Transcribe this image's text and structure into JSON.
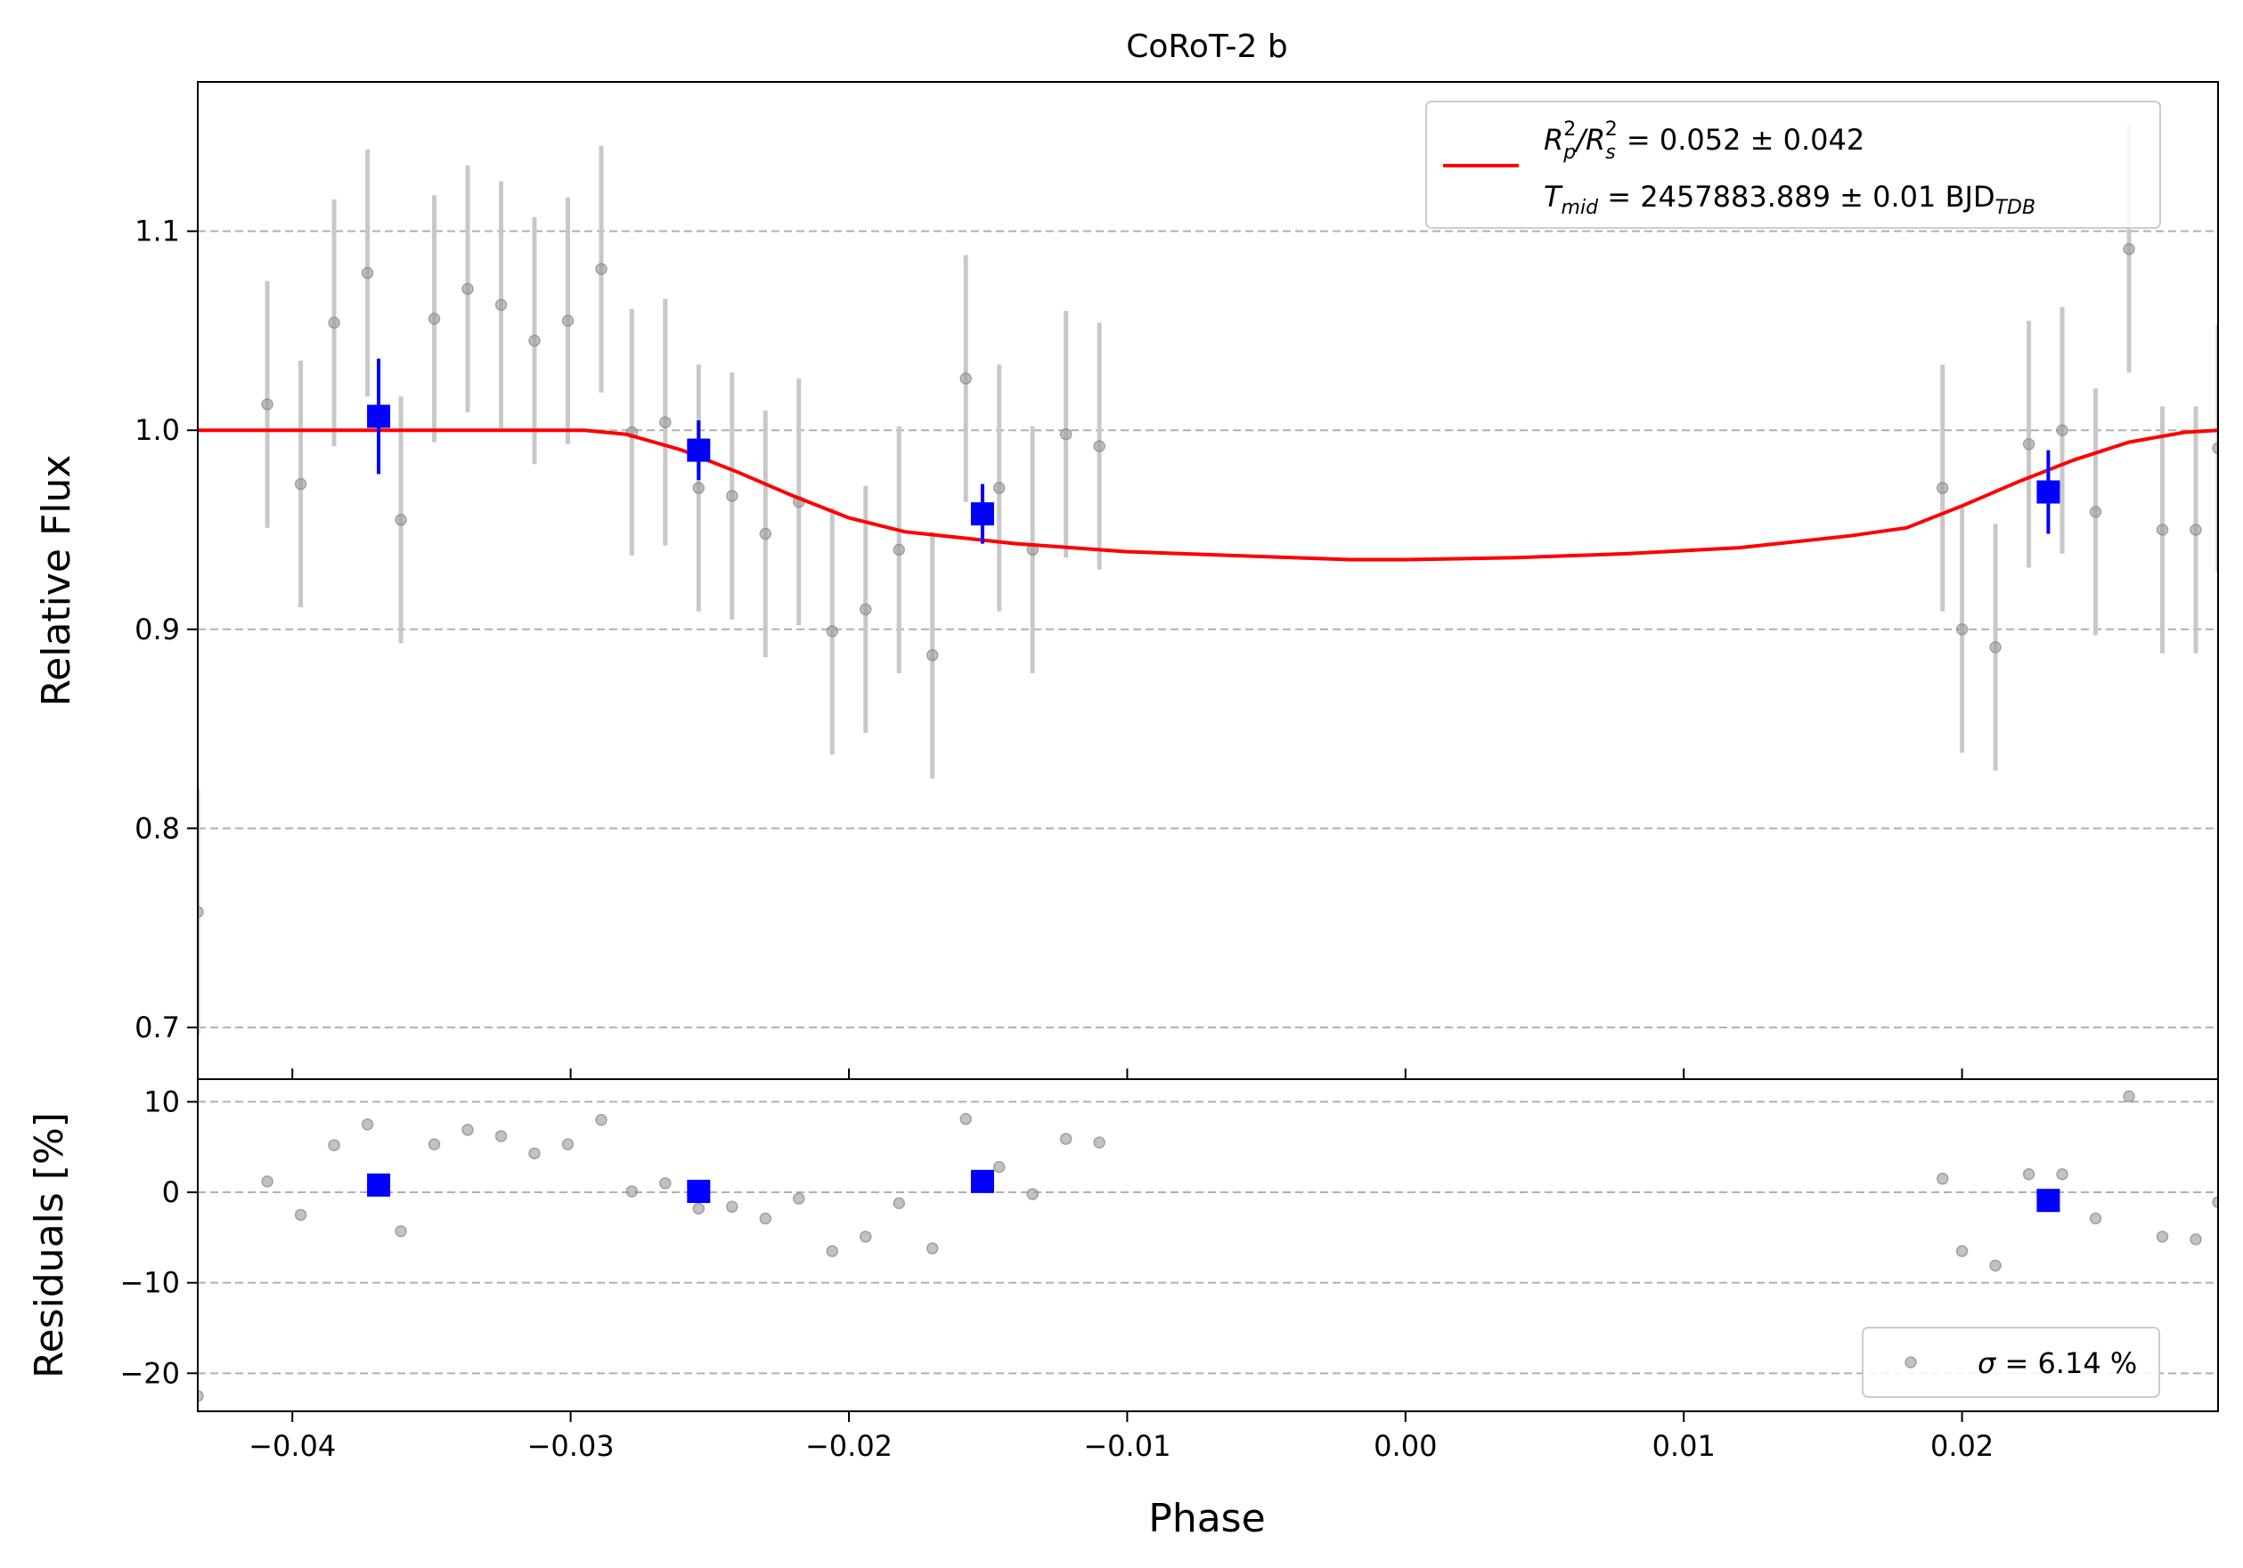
{
  "chart_data": [
    {
      "panel": "flux",
      "type": "scatter",
      "title": "CoRoT-2 b",
      "xlabel": "Phase",
      "ylabel": "Relative Flux",
      "xlim": [
        -0.0434,
        0.0292
      ],
      "ylim": [
        0.674,
        1.175
      ],
      "xticks": [
        -0.04,
        -0.03,
        -0.02,
        -0.01,
        0.0,
        0.01,
        0.02
      ],
      "xtick_labels": [
        "−0.04",
        "−0.03",
        "−0.02",
        "−0.01",
        "0.00",
        "0.01",
        "0.02"
      ],
      "yticks": [
        0.7,
        0.8,
        0.9,
        1.0,
        1.1
      ],
      "ytick_labels": [
        "0.7",
        "0.8",
        "0.9",
        "1.0",
        "1.1"
      ],
      "grid": "horizontal dashed",
      "legend": {
        "placement": "top-right",
        "line1_parts": [
          "R",
          "p",
          "2",
          "/R",
          "s",
          "2",
          " = 0.052 ± 0.042"
        ],
        "line2_parts": [
          "T",
          "mid",
          " = 2457883.889 ± 0.01 BJD",
          "TDB"
        ]
      },
      "series": [
        {
          "role": "data",
          "color": "#999999",
          "points": [
            {
              "x": -0.0434,
              "y": 0.758,
              "err": 0.062
            },
            {
              "x": -0.0409,
              "y": 1.013,
              "err": 0.062
            },
            {
              "x": -0.0397,
              "y": 0.973,
              "err": 0.062
            },
            {
              "x": -0.0385,
              "y": 1.054,
              "err": 0.062
            },
            {
              "x": -0.0373,
              "y": 1.079,
              "err": 0.062
            },
            {
              "x": -0.0361,
              "y": 0.955,
              "err": 0.062
            },
            {
              "x": -0.0349,
              "y": 1.056,
              "err": 0.062
            },
            {
              "x": -0.0337,
              "y": 1.071,
              "err": 0.062
            },
            {
              "x": -0.0325,
              "y": 1.063,
              "err": 0.062
            },
            {
              "x": -0.0313,
              "y": 1.045,
              "err": 0.062
            },
            {
              "x": -0.0301,
              "y": 1.055,
              "err": 0.062
            },
            {
              "x": -0.0289,
              "y": 1.081,
              "err": 0.062
            },
            {
              "x": -0.0278,
              "y": 0.999,
              "err": 0.062
            },
            {
              "x": -0.0266,
              "y": 1.004,
              "err": 0.062
            },
            {
              "x": -0.0254,
              "y": 0.971,
              "err": 0.062
            },
            {
              "x": -0.0242,
              "y": 0.967,
              "err": 0.062
            },
            {
              "x": -0.023,
              "y": 0.948,
              "err": 0.062
            },
            {
              "x": -0.0218,
              "y": 0.964,
              "err": 0.062
            },
            {
              "x": -0.0206,
              "y": 0.899,
              "err": 0.062
            },
            {
              "x": -0.0194,
              "y": 0.91,
              "err": 0.062
            },
            {
              "x": -0.0182,
              "y": 0.94,
              "err": 0.062
            },
            {
              "x": -0.017,
              "y": 0.887,
              "err": 0.062
            },
            {
              "x": -0.0158,
              "y": 1.026,
              "err": 0.062
            },
            {
              "x": -0.0146,
              "y": 0.971,
              "err": 0.062
            },
            {
              "x": -0.0134,
              "y": 0.94,
              "err": 0.062
            },
            {
              "x": -0.0122,
              "y": 0.998,
              "err": 0.062
            },
            {
              "x": -0.011,
              "y": 0.992,
              "err": 0.062
            },
            {
              "x": 0.0193,
              "y": 0.971,
              "err": 0.062
            },
            {
              "x": 0.02,
              "y": 0.9,
              "err": 0.062
            },
            {
              "x": 0.0212,
              "y": 0.891,
              "err": 0.062
            },
            {
              "x": 0.0224,
              "y": 0.993,
              "err": 0.062
            },
            {
              "x": 0.0236,
              "y": 1.0,
              "err": 0.062
            },
            {
              "x": 0.0248,
              "y": 0.959,
              "err": 0.062
            },
            {
              "x": 0.026,
              "y": 1.091,
              "err": 0.062
            },
            {
              "x": 0.0272,
              "y": 0.95,
              "err": 0.062
            },
            {
              "x": 0.0284,
              "y": 0.95,
              "err": 0.062
            },
            {
              "x": 0.0292,
              "y": 0.991,
              "err": 0.062
            }
          ]
        },
        {
          "role": "binned",
          "color": "#0000ff",
          "points": [
            {
              "x": -0.0369,
              "y": 1.007,
              "err": 0.029
            },
            {
              "x": -0.0254,
              "y": 0.99,
              "err": 0.015
            },
            {
              "x": -0.0152,
              "y": 0.958,
              "err": 0.015
            },
            {
              "x": 0.0231,
              "y": 0.969,
              "err": 0.021
            }
          ]
        },
        {
          "role": "model",
          "type": "line",
          "color": "#ff0000",
          "points": [
            {
              "x": -0.0434,
              "y": 1.0
            },
            {
              "x": -0.0295,
              "y": 1.0
            },
            {
              "x": -0.028,
              "y": 0.998
            },
            {
              "x": -0.026,
              "y": 0.99
            },
            {
              "x": -0.024,
              "y": 0.979
            },
            {
              "x": -0.022,
              "y": 0.967
            },
            {
              "x": -0.02,
              "y": 0.956
            },
            {
              "x": -0.018,
              "y": 0.949
            },
            {
              "x": -0.016,
              "y": 0.946
            },
            {
              "x": -0.014,
              "y": 0.943
            },
            {
              "x": -0.012,
              "y": 0.941
            },
            {
              "x": -0.01,
              "y": 0.939
            },
            {
              "x": -0.006,
              "y": 0.937
            },
            {
              "x": -0.002,
              "y": 0.935
            },
            {
              "x": 0.0,
              "y": 0.935
            },
            {
              "x": 0.004,
              "y": 0.936
            },
            {
              "x": 0.008,
              "y": 0.938
            },
            {
              "x": 0.012,
              "y": 0.941
            },
            {
              "x": 0.016,
              "y": 0.947
            },
            {
              "x": 0.018,
              "y": 0.951
            },
            {
              "x": 0.02,
              "y": 0.962
            },
            {
              "x": 0.022,
              "y": 0.974
            },
            {
              "x": 0.024,
              "y": 0.985
            },
            {
              "x": 0.026,
              "y": 0.994
            },
            {
              "x": 0.028,
              "y": 0.999
            },
            {
              "x": 0.0292,
              "y": 1.0
            }
          ]
        }
      ]
    },
    {
      "panel": "residuals",
      "type": "scatter",
      "xlabel": "Phase",
      "ylabel": "Residuals [%]",
      "xlim": [
        -0.0434,
        0.0292
      ],
      "ylim": [
        -24.2,
        12.5
      ],
      "yticks": [
        -20,
        -10,
        0,
        10
      ],
      "ytick_labels": [
        "−20",
        "−10",
        "0",
        "10"
      ],
      "grid": "horizontal dashed",
      "legend": {
        "placement": "bottom-right",
        "parts": [
          "σ",
          " = 6.14 %"
        ]
      },
      "series": [
        {
          "role": "data",
          "color": "#999999",
          "points": [
            {
              "x": -0.0434,
              "y": -22.5
            },
            {
              "x": -0.0409,
              "y": 1.2
            },
            {
              "x": -0.0397,
              "y": -2.5
            },
            {
              "x": -0.0385,
              "y": 5.2
            },
            {
              "x": -0.0373,
              "y": 7.5
            },
            {
              "x": -0.0361,
              "y": -4.3
            },
            {
              "x": -0.0349,
              "y": 5.3
            },
            {
              "x": -0.0337,
              "y": 6.9
            },
            {
              "x": -0.0325,
              "y": 6.2
            },
            {
              "x": -0.0313,
              "y": 4.3
            },
            {
              "x": -0.0301,
              "y": 5.3
            },
            {
              "x": -0.0289,
              "y": 8.0
            },
            {
              "x": -0.0278,
              "y": 0.1
            },
            {
              "x": -0.0266,
              "y": 1.0
            },
            {
              "x": -0.0254,
              "y": -1.8
            },
            {
              "x": -0.0242,
              "y": -1.6
            },
            {
              "x": -0.023,
              "y": -2.9
            },
            {
              "x": -0.0218,
              "y": -0.7
            },
            {
              "x": -0.0206,
              "y": -6.5
            },
            {
              "x": -0.0194,
              "y": -4.9
            },
            {
              "x": -0.0182,
              "y": -1.2
            },
            {
              "x": -0.017,
              "y": -6.2
            },
            {
              "x": -0.0158,
              "y": 8.1
            },
            {
              "x": -0.0146,
              "y": 2.8
            },
            {
              "x": -0.0134,
              "y": -0.2
            },
            {
              "x": -0.0122,
              "y": 5.9
            },
            {
              "x": -0.011,
              "y": 5.5
            },
            {
              "x": 0.0193,
              "y": 1.5
            },
            {
              "x": 0.02,
              "y": -6.5
            },
            {
              "x": 0.0212,
              "y": -8.1
            },
            {
              "x": 0.0224,
              "y": 2.0
            },
            {
              "x": 0.0236,
              "y": 2.0
            },
            {
              "x": 0.0248,
              "y": -2.9
            },
            {
              "x": 0.026,
              "y": 10.6
            },
            {
              "x": 0.0272,
              "y": -4.9
            },
            {
              "x": 0.0284,
              "y": -5.2
            },
            {
              "x": 0.0292,
              "y": -1.1
            }
          ]
        },
        {
          "role": "binned",
          "color": "#0000ff",
          "points": [
            {
              "x": -0.0369,
              "y": 0.8
            },
            {
              "x": -0.0254,
              "y": 0.1
            },
            {
              "x": -0.0152,
              "y": 1.2
            },
            {
              "x": 0.0231,
              "y": -0.9
            }
          ]
        }
      ]
    }
  ]
}
